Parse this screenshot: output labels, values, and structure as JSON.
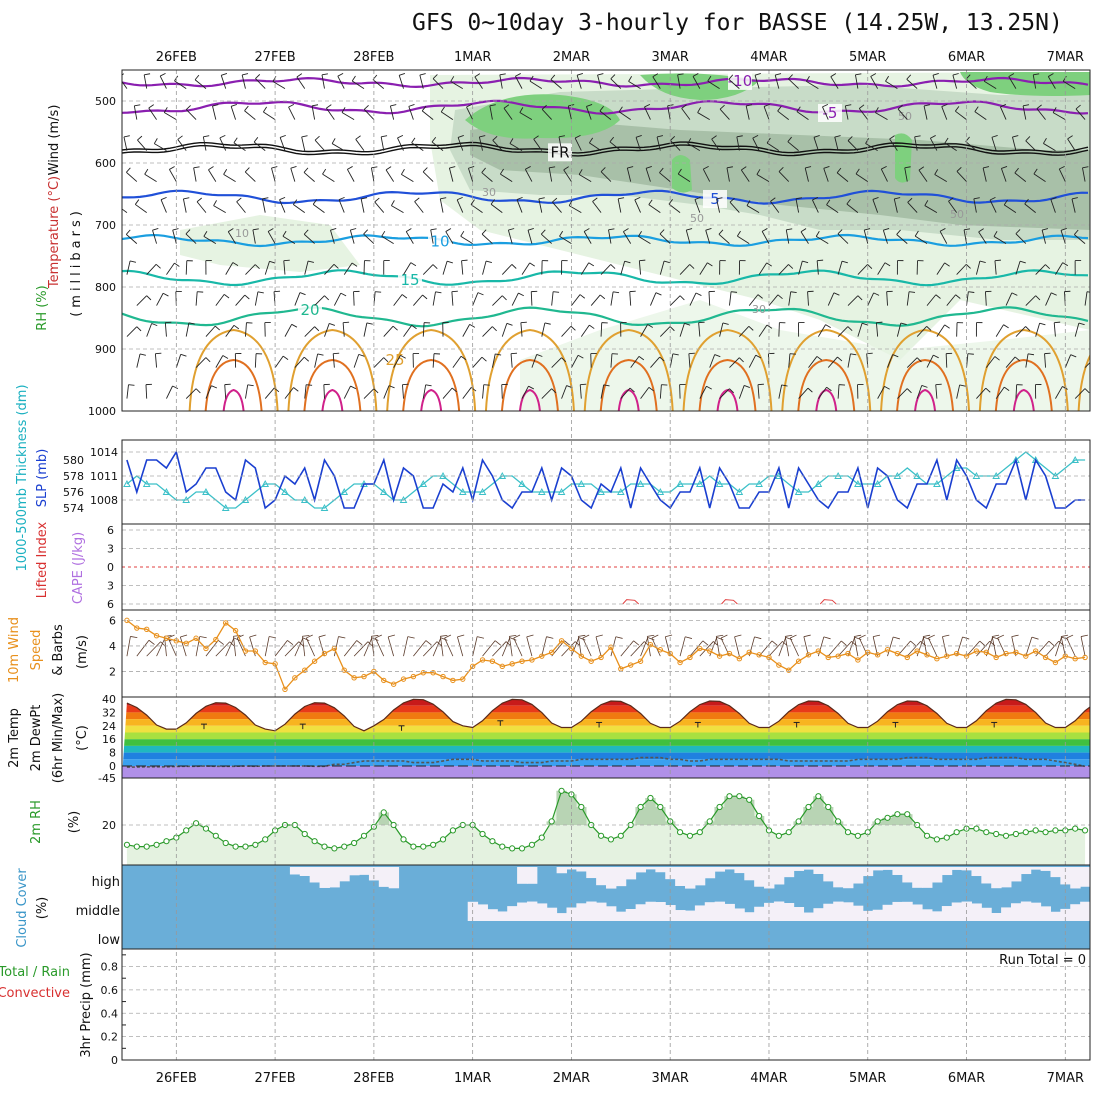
{
  "title": "GFS 0~10day 3-hourly for BASSE (14.25W, 13.25N)",
  "dates": [
    "26FEB",
    "27FEB",
    "28FEB",
    "1MAR",
    "2MAR",
    "3MAR",
    "4MAR",
    "5MAR",
    "6MAR",
    "7MAR"
  ],
  "colors": {
    "purple": "#8a1fb0",
    "blue": "#2050d8",
    "lightblue": "#1a9ee0",
    "teal": "#18b8a8",
    "green20": "#20b890",
    "orange": "#e0a030",
    "darkorange": "#e07020",
    "magenta": "#d0208a",
    "cyan": "#3cc0c8",
    "slp": "#1a3fd0",
    "wind10": "#e8901c",
    "rh": "#2a9a2a",
    "cloud": "#6aaed8",
    "cloudgap": "#f4f0f8"
  },
  "labels": {
    "p1_temp": "Temperature (°C)",
    "p1_wind": "Wind (m/s)",
    "p1_rh": "RH (%)",
    "p1_mb": "(millibars)",
    "p2_thk": "1000-500mb Thickness (dm)",
    "p2_slp": "SLP (mb)",
    "p3_li": "Lifted Index",
    "p3_cape": "CAPE (J/kg)",
    "p4_a": "10m Wind",
    "p4_b": "Speed",
    "p4_c": "& Barbs",
    "p4_unit": "(m/s)",
    "p5_a": "2m Temp",
    "p5_b": "2m DewPt",
    "p5_c": "(6hr Min/Max)",
    "p5_unit": "(°C)",
    "p6_a": "2m RH",
    "p6_unit": "(%)",
    "p7_a": "Cloud Cover",
    "p7_unit": "(%)",
    "p8_a": "Total / Rain",
    "p8_b": "Convective",
    "p8_c": "3hr Precip (mm)",
    "run_total": "Run Total = 0",
    "cloud_high": "high",
    "cloud_middle": "middle",
    "cloud_low": "low"
  },
  "chart_data": [
    {
      "type": "contour",
      "name_note": "upper-air time-height cross section",
      "y_axis": "millibars",
      "ylim": [
        1000,
        450
      ],
      "yticks": [
        500,
        600,
        700,
        800,
        900,
        1000
      ],
      "isotherm_labels": [
        "-10",
        "-5",
        "FR",
        "5",
        "10",
        "15",
        "20",
        "25"
      ],
      "rh_labels": [
        "30",
        "50",
        "70",
        "10"
      ]
    },
    {
      "type": "line",
      "series": [
        {
          "name": "SLP (mb)",
          "values": [
            1013,
            1009,
            1013,
            1013,
            1012,
            1014,
            1009,
            1010,
            1012,
            1012,
            1009,
            1008,
            1013,
            1012,
            1007,
            1008,
            1011,
            1010,
            1012,
            1008,
            1013,
            1011,
            1007,
            1007,
            1010,
            1010,
            1013,
            1008,
            1012,
            1011,
            1007,
            1007,
            1010,
            1009,
            1012,
            1008,
            1013,
            1011,
            1008,
            1007,
            1009,
            1009,
            1012,
            1008,
            1012,
            1011,
            1008,
            1007,
            1010,
            1009,
            1012,
            1007,
            1012,
            1010,
            1008,
            1007,
            1009,
            1009,
            1012,
            1007,
            1012,
            1010,
            1007,
            1007,
            1009,
            1009,
            1012,
            1007,
            1012,
            1010,
            1008,
            1007,
            1009,
            1009,
            1012,
            1007,
            1012,
            1011,
            1008,
            1007,
            1010,
            1010,
            1013,
            1008,
            1013,
            1011,
            1008,
            1007,
            1010,
            1010,
            1013,
            1008,
            1013,
            1011,
            1007,
            1007,
            1008,
            1008
          ]
        },
        {
          "name": "1000-500mb Thickness (dm)",
          "values": [
            577,
            578,
            577,
            577,
            576,
            575,
            575,
            576,
            576,
            575,
            574,
            574,
            575,
            576,
            577,
            577,
            576,
            575,
            575,
            574,
            574,
            575,
            576,
            577,
            577,
            577,
            576,
            575,
            575,
            576,
            577,
            578,
            578,
            577,
            576,
            576,
            576,
            577,
            578,
            578,
            577,
            576,
            576,
            576,
            576,
            577,
            577,
            577,
            576,
            576,
            576,
            577,
            577,
            577,
            576,
            576,
            577,
            577,
            577,
            578,
            577,
            577,
            576,
            577,
            577,
            578,
            578,
            577,
            576,
            576,
            577,
            578,
            578,
            578,
            577,
            577,
            577,
            578,
            578,
            579,
            578,
            577,
            577,
            578,
            579,
            579,
            578,
            578,
            578,
            579,
            580,
            581,
            580,
            579,
            578,
            579,
            580,
            580
          ]
        }
      ],
      "ylim_slp": [
        1006,
        1015
      ],
      "yticks_slp": [
        1008,
        1011,
        1014
      ],
      "yticks_thk": [
        574,
        576,
        578,
        580
      ]
    },
    {
      "type": "line",
      "yticks": [
        6,
        3,
        0,
        -3,
        -6
      ],
      "yticks_labels": [
        "6",
        "3",
        "0",
        "3",
        "6"
      ],
      "series": [
        {
          "name": "Lifted Index",
          "values": []
        }
      ]
    },
    {
      "type": "line",
      "ylim": [
        0,
        6.5
      ],
      "yticks": [
        2,
        4,
        6
      ],
      "series": [
        {
          "name": "10m Wind Speed",
          "values": [
            6,
            5.4,
            5.3,
            4.8,
            4.6,
            4.4,
            4.2,
            4.6,
            3.8,
            4.5,
            5.8,
            5.2,
            3.6,
            3.6,
            2.7,
            2.6,
            0.6,
            1.5,
            2.1,
            2.8,
            3.4,
            3.8,
            2.1,
            1.5,
            1.6,
            2.0,
            1.3,
            1.0,
            1.4,
            1.6,
            1.9,
            1.9,
            1.6,
            1.3,
            1.4,
            2.4,
            2.9,
            2.8,
            2.4,
            2.6,
            2.8,
            2.9,
            3.2,
            3.5,
            4.4,
            3.8,
            3.2,
            2.8,
            3.1,
            3.9,
            2.2,
            2.5,
            2.8,
            4.1,
            3.7,
            3.4,
            2.7,
            3.1,
            3.8,
            3.6,
            3.2,
            3.4,
            3.0,
            3.5,
            3.3,
            3.1,
            2.5,
            2.1,
            2.8,
            3.3,
            3.6,
            3.1,
            3.2,
            3.4,
            2.9,
            3.5,
            3.3,
            3.7,
            3.4,
            3.1,
            3.6,
            3.3,
            3.0,
            3.2,
            3.4,
            3.2,
            3.6,
            3.5,
            3.1,
            3.4,
            3.5,
            3.2,
            3.6,
            3.1,
            2.7,
            3.2,
            3.0,
            3.1
          ]
        }
      ]
    },
    {
      "type": "area",
      "ylim": [
        -45,
        40
      ],
      "yticks": [
        -45,
        0,
        8,
        16,
        24,
        32,
        40
      ],
      "yticks_labels": [
        "-45",
        "0",
        "8",
        "16",
        "24",
        "32",
        "40"
      ],
      "series": [
        {
          "name": "2m Temp",
          "daily_max": [
            38,
            38,
            38,
            40,
            40,
            39,
            39,
            39,
            39,
            40
          ],
          "daily_min": [
            22,
            22,
            21,
            24,
            23,
            23,
            23,
            23,
            23,
            23
          ]
        },
        {
          "name": "2m DewPt",
          "values": [
            -4,
            -4,
            -3,
            -3,
            -3,
            -2,
            -1,
            -1,
            0,
            -1,
            -1,
            -1,
            0,
            -1,
            0,
            0,
            0,
            0,
            0,
            -1,
            -1,
            1,
            1,
            2,
            3,
            3,
            3,
            3,
            3,
            2,
            2,
            2,
            3,
            4,
            4,
            4,
            3,
            3,
            3,
            3,
            2,
            2,
            2,
            3,
            3,
            3,
            4,
            4,
            4,
            4,
            4,
            4,
            5,
            5,
            5,
            4,
            4,
            3,
            3,
            4,
            4,
            4,
            4,
            4,
            4,
            4,
            4,
            3,
            3,
            3,
            3,
            3,
            3,
            3,
            4,
            4,
            4,
            4,
            4,
            5,
            5,
            5,
            4,
            4,
            4,
            4,
            4,
            5,
            5,
            5,
            5,
            4,
            4,
            4,
            3,
            2,
            1,
            -1
          ]
        }
      ]
    },
    {
      "type": "area",
      "ylim": [
        0,
        45
      ],
      "yticks": [
        20
      ],
      "series": [
        {
          "name": "2m RH",
          "values": [
            9,
            8,
            8,
            9,
            11,
            13,
            17,
            21,
            18,
            14,
            10,
            8,
            8,
            9,
            12,
            17,
            20,
            20,
            15,
            11,
            8,
            7,
            8,
            10,
            14,
            19,
            27,
            20,
            12,
            8,
            8,
            9,
            12,
            17,
            20,
            20,
            15,
            11,
            8,
            7,
            7,
            9,
            13,
            22,
            39,
            37,
            30,
            20,
            14,
            12,
            14,
            20,
            30,
            35,
            30,
            22,
            16,
            14,
            16,
            22,
            30,
            36,
            36,
            34,
            25,
            17,
            14,
            16,
            22,
            30,
            36,
            30,
            22,
            16,
            14,
            16,
            22,
            24,
            26,
            26,
            20,
            14,
            12,
            13,
            16,
            18,
            18,
            16,
            15,
            14,
            15,
            16,
            17,
            16,
            17,
            17,
            18,
            17
          ]
        }
      ]
    },
    {
      "type": "heatmap",
      "name": "Cloud Cover",
      "rows": [
        "high",
        "middle",
        "low"
      ]
    },
    {
      "type": "bar",
      "ylim": [
        0,
        0.95
      ],
      "yticks": [
        0,
        0.2,
        0.4,
        0.6,
        0.8
      ],
      "yticks_labels": [
        "0",
        "0.2",
        "0.4",
        "0.6",
        "0.8"
      ],
      "series": [
        {
          "name": "3hr Precip (mm)",
          "values": []
        }
      ]
    }
  ]
}
